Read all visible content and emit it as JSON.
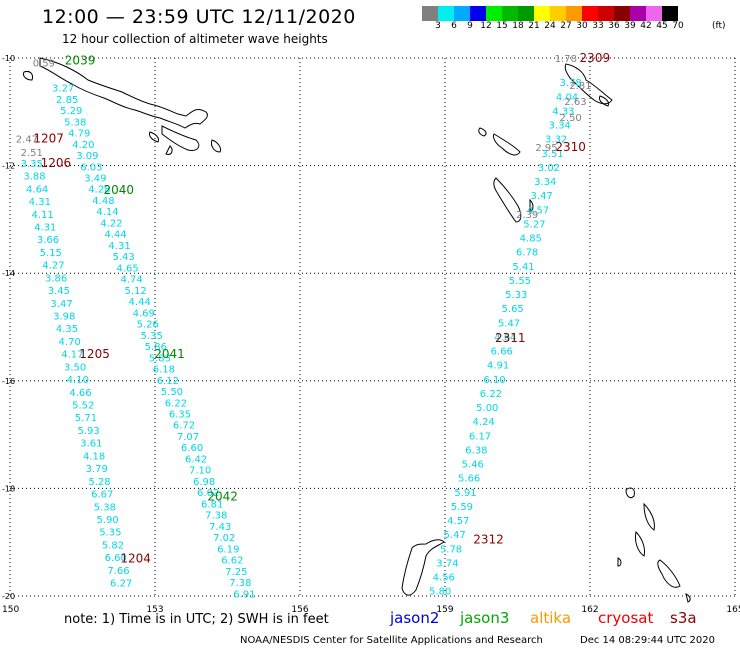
{
  "title": "12:00 — 23:59 UTC 12/11/2020",
  "subtitle": "12 hour collection of altimeter wave heights",
  "legend": {
    "unit": "(ft)",
    "bins": [
      {
        "label": "3",
        "color": "#808080"
      },
      {
        "label": "6",
        "color": "#00eeee"
      },
      {
        "label": "9",
        "color": "#00aaff"
      },
      {
        "label": "12",
        "color": "#0000ee"
      },
      {
        "label": "15",
        "color": "#00ee00"
      },
      {
        "label": "18",
        "color": "#00bb00"
      },
      {
        "label": "21",
        "color": "#009900"
      },
      {
        "label": "24",
        "color": "#ffff00"
      },
      {
        "label": "27",
        "color": "#ffcc00"
      },
      {
        "label": "30",
        "color": "#ff9900"
      },
      {
        "label": "33",
        "color": "#ff0000"
      },
      {
        "label": "36",
        "color": "#cc0000"
      },
      {
        "label": "39",
        "color": "#880000"
      },
      {
        "label": "42",
        "color": "#aa00aa"
      },
      {
        "label": "45",
        "color": "#ee66ee"
      },
      {
        "label": "70",
        "color": "#000000"
      }
    ]
  },
  "map": {
    "lon_range": [
      150,
      165
    ],
    "lat_range": [
      -20,
      -10
    ],
    "lon_ticks": [
      "150",
      "153",
      "156",
      "159",
      "162",
      "165"
    ],
    "lat_ticks": [
      "-10",
      "-12",
      "-14",
      "-16",
      "-18",
      "-20"
    ],
    "colors": {
      "cyan": "#00d8e8",
      "gray": "#808080",
      "green": "#008800",
      "maroon": "#8b0000"
    },
    "tracks": [
      {
        "color": "cyan",
        "values": [
          "3.27",
          "2.85",
          "5.29",
          "5.38",
          "4.79",
          "4.20",
          "3.09",
          "6.03",
          "3.49",
          "4.28",
          "4.48",
          "4.14",
          "4.22",
          "4.44",
          "4.31",
          "5.43",
          "4.65",
          "4.74",
          "5.12",
          "4.44",
          "4.69",
          "5.26",
          "5.35",
          "5.86",
          "5.83",
          "6.18",
          "6.12",
          "5.50",
          "6.22",
          "6.35",
          "6.72",
          "7.07",
          "6.60",
          "6.42",
          "7.10",
          "6.98",
          "6.02",
          "6.81",
          "7.38",
          "7.43",
          "7.02",
          "6.19",
          "6.62",
          "7.25",
          "7.38",
          "6.91"
        ],
        "lon0": 151.1,
        "lat0": -10.55,
        "lon1": 154.85,
        "lat1": -19.95
      },
      {
        "color": "cyan",
        "values": [
          "3.35",
          "3.88",
          "4.64",
          "4.31",
          "4.11",
          "4.31",
          "3.66",
          "5.15",
          "4.27",
          "3.86",
          "3.45",
          "3.47",
          "3.98",
          "4.35",
          "4.70",
          "4.17",
          "3.50",
          "4.10",
          "4.66",
          "5.52",
          "5.71",
          "5.93",
          "3.61",
          "4.18",
          "3.79",
          "5.28",
          "6.67",
          "5.38",
          "5.90",
          "5.35",
          "5.82",
          "6.60",
          "7.66",
          "6.27"
        ],
        "lon0": 150.45,
        "lat0": -11.95,
        "lon1": 152.3,
        "lat1": -19.75
      },
      {
        "color": "cyan",
        "values": [
          "3.78",
          "4.04",
          "4.33",
          "3.34",
          "3.32",
          "3.51",
          "3.02",
          "3.34",
          "3.47",
          "4.57",
          "5.27",
          "4.85",
          "6.78",
          "5.41",
          "5.55",
          "5.33",
          "5.65",
          "5.47",
          "4.64",
          "6.66",
          "4.91",
          "6.10",
          "6.22",
          "5.00",
          "4.24",
          "6.17",
          "6.38",
          "5.46",
          "5.66",
          "5.91",
          "5.59",
          "4.57",
          "5.47",
          "5.78",
          "3.74",
          "4.56",
          "5.80"
        ],
        "lon0": 161.6,
        "lat0": -10.45,
        "lon1": 158.9,
        "lat1": -19.9
      }
    ],
    "gray_labels": [
      {
        "text": "0.59",
        "lon": 150.7,
        "lat": -10.08
      },
      {
        "text": "2.47",
        "lon": 150.35,
        "lat": -11.5
      },
      {
        "text": "2.51",
        "lon": 150.45,
        "lat": -11.75
      },
      {
        "text": "1.78",
        "lon": 161.5,
        "lat": -10.0
      },
      {
        "text": "2.81",
        "lon": 161.8,
        "lat": -10.5
      },
      {
        "text": "2.63",
        "lon": 161.7,
        "lat": -10.8
      },
      {
        "text": "2.50",
        "lon": 161.6,
        "lat": -11.1
      },
      {
        "text": "2.95",
        "lon": 161.1,
        "lat": -11.65
      },
      {
        "text": "2.39",
        "lon": 160.7,
        "lat": -12.9
      }
    ],
    "green_labels": [
      {
        "text": "2039",
        "lon": 151.45,
        "lat": -10.05
      },
      {
        "text": "2040",
        "lon": 152.25,
        "lat": -12.45
      },
      {
        "text": "2041",
        "lon": 153.3,
        "lat": -15.5
      },
      {
        "text": "2042",
        "lon": 154.4,
        "lat": -18.15
      }
    ],
    "maroon_labels": [
      {
        "text": "2309",
        "lon": 162.1,
        "lat": -10.0
      },
      {
        "text": "1207",
        "lon": 150.8,
        "lat": -11.5
      },
      {
        "text": "1206",
        "lon": 150.95,
        "lat": -11.95
      },
      {
        "text": "2310",
        "lon": 161.6,
        "lat": -11.65
      },
      {
        "text": "2311",
        "lon": 160.35,
        "lat": -15.2
      },
      {
        "text": "1205",
        "lon": 151.75,
        "lat": -15.5
      },
      {
        "text": "2312",
        "lon": 159.9,
        "lat": -18.95
      },
      {
        "text": "1204",
        "lon": 152.6,
        "lat": -19.3
      }
    ]
  },
  "footer": {
    "note": "note: 1) Time is in UTC; 2) SWH is in feet",
    "satellites": [
      {
        "name": "jason2",
        "color": "#0000dd"
      },
      {
        "name": "jason3",
        "color": "#00aa00"
      },
      {
        "name": "altika",
        "color": "#ff9900"
      },
      {
        "name": "cryosat",
        "color": "#ee0000"
      },
      {
        "name": "s3a",
        "color": "#8b0000"
      }
    ],
    "credit": "NOAA/NESDIS Center for Satellite Applications and Research",
    "generated": "Dec 14 08:29:44 UTC 2020"
  }
}
